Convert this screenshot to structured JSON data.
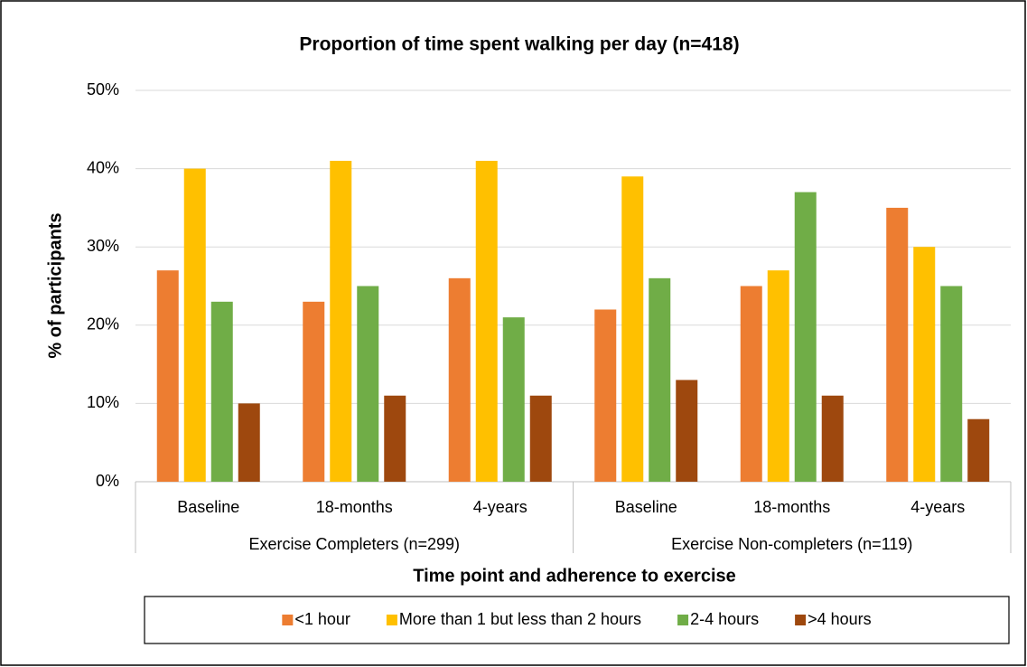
{
  "chart_data": {
    "type": "bar",
    "title": "Proportion of time spent walking per day (n=418)",
    "x_label": "Time point and adherence to exercise",
    "y_label": "% of participants",
    "categories": [
      "Baseline",
      "18-months",
      "4-years",
      "Baseline",
      "18-months",
      "4-years"
    ],
    "groups": [
      "Exercise Completers (n=299)",
      "Exercise Non-completers (n=119)"
    ],
    "series": [
      {
        "name": "<1 hour",
        "color": "#ED7D31",
        "values": [
          27,
          23,
          26,
          22,
          25,
          35
        ]
      },
      {
        "name": "More than 1 but less than 2 hours",
        "color": "#FFC000",
        "values": [
          40,
          41,
          41,
          39,
          27,
          30
        ]
      },
      {
        "name": "2-4 hours",
        "color": "#70AD47",
        "values": [
          23,
          25,
          21,
          26,
          37,
          25
        ]
      },
      {
        "name": ">4 hours",
        "color": "#9E480E",
        "values": [
          10,
          11,
          11,
          13,
          11,
          8
        ]
      }
    ],
    "ylim": [
      0,
      50
    ],
    "yticks": [
      {
        "value": 0,
        "label": "0%"
      },
      {
        "value": 10,
        "label": "10%"
      },
      {
        "value": 20,
        "label": "20%"
      },
      {
        "value": 30,
        "label": "30%"
      },
      {
        "value": 40,
        "label": "40%"
      },
      {
        "value": 50,
        "label": "50%"
      }
    ],
    "grid": true,
    "legend_position": "bottom"
  }
}
